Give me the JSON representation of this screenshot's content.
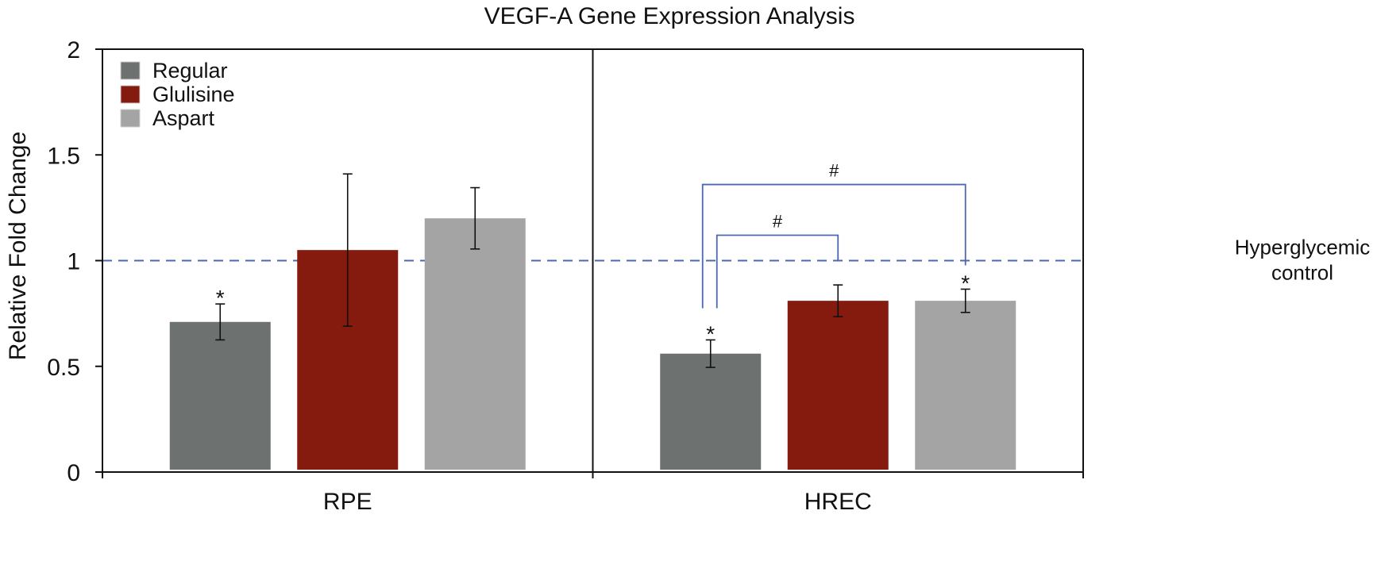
{
  "chart_data": {
    "type": "bar",
    "title": "VEGF-A Gene Expression Analysis",
    "xlabel": "",
    "ylabel": "Relative Fold Change",
    "ylim": [
      0,
      2
    ],
    "yticks": [
      0,
      0.5,
      1,
      1.5,
      2
    ],
    "ytick_labels": [
      "0",
      "0.5",
      "1",
      "1.5",
      "2"
    ],
    "categories": [
      "RPE",
      "HREC"
    ],
    "series": [
      {
        "name": "Regular",
        "color": "#6d716f",
        "values": [
          0.71,
          0.56
        ],
        "errors": [
          0.085,
          0.065
        ],
        "annotations": [
          "*",
          "*"
        ]
      },
      {
        "name": "Glulisine",
        "color": "#851a0e",
        "values": [
          1.05,
          0.81
        ],
        "errors": [
          0.36,
          0.075
        ],
        "annotations": [
          "",
          ""
        ]
      },
      {
        "name": "Aspart",
        "color": "#a4a4a4",
        "values": [
          1.2,
          0.81
        ],
        "errors": [
          0.145,
          0.055
        ],
        "annotations": [
          "",
          "*"
        ]
      }
    ],
    "reference_line": {
      "value": 1,
      "style": "dashed",
      "color": "#4b68b0",
      "label_lines": [
        "Hyperglycemic",
        "control"
      ]
    },
    "significance_brackets": [
      {
        "category": "HREC",
        "from": "Regular",
        "to": "Glulisine",
        "label": "#",
        "height": 1.12
      },
      {
        "category": "HREC",
        "from": "Regular",
        "to": "Aspart",
        "label": "#",
        "height": 1.36
      }
    ],
    "legend_position": "top-left",
    "grid": false
  }
}
